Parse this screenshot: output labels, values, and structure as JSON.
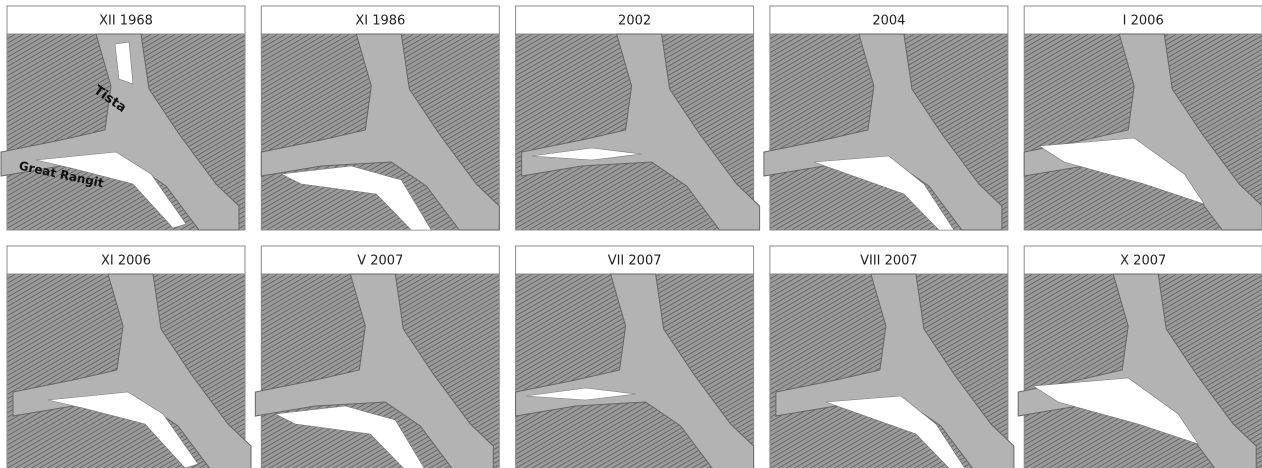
{
  "panels": [
    {
      "title": "XII 1968"
    },
    {
      "title": "XI 1986"
    },
    {
      "title": "2002"
    },
    {
      "title": "2004"
    },
    {
      "title": "I 2006"
    },
    {
      "title": "XI 2006"
    },
    {
      "title": "V 2007"
    },
    {
      "title": "VII 2007"
    },
    {
      "title": "VIII 2007"
    },
    {
      "title": "X 2007"
    }
  ],
  "map_labels": {
    "river_1": "Tista",
    "river_2": "Great Rangit"
  }
}
